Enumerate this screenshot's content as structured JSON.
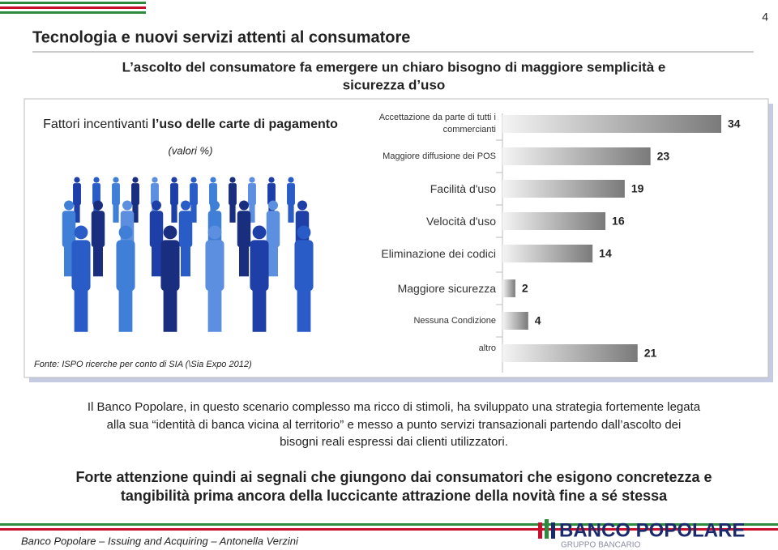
{
  "page_number": "4",
  "header": {
    "title": "Tecnologia e nuovi servizi attenti al consumatore",
    "subtitle_lines": [
      "L’ascolto del consumatore fa emergere un chiaro bisogno di maggiore semplicità e",
      "sicurezza d’uso"
    ]
  },
  "chart_data": {
    "type": "bar",
    "orientation": "horizontal",
    "title_parts": [
      "Fattori incentivanti",
      "l’uso delle carte di pagamento"
    ],
    "subtitle": "(valori %)",
    "source": "Fonte: ISPO ricerche per conto di SIA (\\Sia Expo 2012)",
    "categories": [
      "Accettazione da parte di tutti i commercianti",
      "Maggiore diffusione dei POS",
      "Facilità d'uso",
      "Velocità d'uso",
      "Eliminazione dei codici",
      "Maggiore sicurezza",
      "Nessuna Condizione",
      "altro"
    ],
    "values": [
      34,
      23,
      19,
      16,
      14,
      2,
      4,
      21
    ],
    "color": "#7a7a7a"
  },
  "body": {
    "paragraph_lines": [
      "Il Banco Popolare, in questo scenario complesso ma ricco di stimoli, ha sviluppato una strategia fortemente legata",
      "alla sua “identità di banca vicina al territorio” e messo a punto servizi transazionali partendo dall’ascolto dei",
      "bisogni reali espressi dai clienti utilizzatori."
    ],
    "emphasis_lines": [
      "Forte attenzione quindi ai segnali che giungono dai consumatori che esigono concretezza e",
      "tangibilità prima ancora della luccicante attrazione della novità fine a sé stessa"
    ]
  },
  "footer": {
    "credit": "Banco Popolare – Issuing and Acquiring – Antonella Verzini",
    "logo_name": "BANCO POPOLARE",
    "logo_group": "GRUPPO BANCARIO"
  }
}
